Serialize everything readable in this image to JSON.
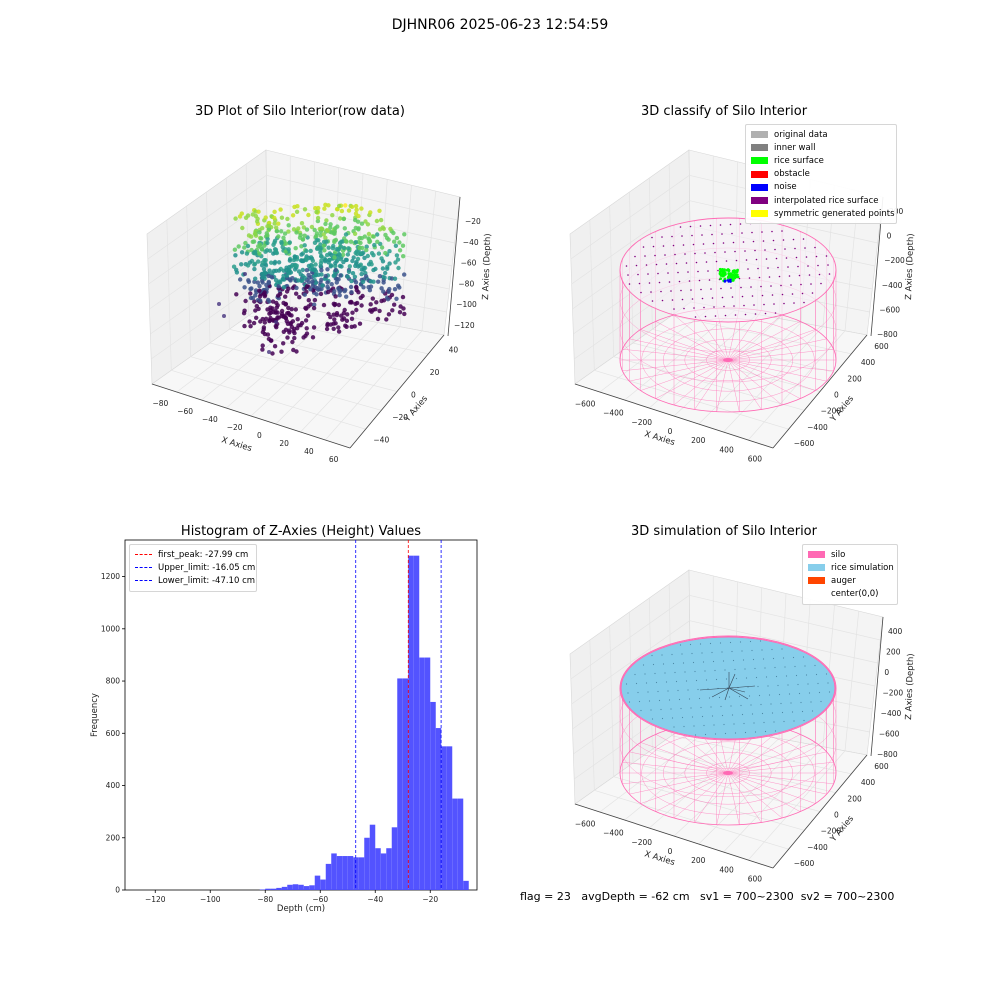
{
  "suptitle": "DJHNR06 2025-06-23 12:54:59",
  "footer": {
    "flag": "flag = 23",
    "avgdepth": "avgDepth = -62 cm",
    "sv1": "sv1 = 700~2300",
    "sv2": "sv2 = 700~2300"
  },
  "colors": {
    "silo_pink": "#ff69b4",
    "rice_blue": "#87ceeb",
    "auger": "#ff4500",
    "hist_bar": "#4a4aff"
  },
  "chart_data": [
    {
      "type": "scatter",
      "title": "3D Plot of Silo Interior(row data)",
      "xlabel": "X Axies",
      "ylabel": "Y Axies",
      "zlabel": "Z Axies (Depth)",
      "xticks": [
        "−80",
        "−60",
        "−40",
        "−20",
        "0",
        "20",
        "40",
        "60"
      ],
      "yticks": [
        "−40",
        "−20",
        "0",
        "20",
        "40"
      ],
      "zticks": [
        "−20",
        "−40",
        "−60",
        "−80",
        "−100",
        "−120"
      ],
      "xlim": [
        -90,
        70
      ],
      "ylim": [
        -50,
        45
      ],
      "zlim": [
        -130,
        -10
      ],
      "colormap": "viridis"
    },
    {
      "type": "scatter",
      "title": "3D classify of Silo Interior",
      "xlabel": "X Axies",
      "ylabel": "Y Axies",
      "zlabel": "Z Axies (Depth)",
      "xticks": [
        "−600",
        "−400",
        "−200",
        "0",
        "200",
        "400",
        "600"
      ],
      "yticks": [
        "−600",
        "−400",
        "−200",
        "0",
        "200",
        "400",
        "600"
      ],
      "zticks": [
        "200",
        "0",
        "−200",
        "−400",
        "−600",
        "−800"
      ],
      "legend": [
        {
          "label": "original data",
          "color": "#b0b0b0"
        },
        {
          "label": "inner wall",
          "color": "#808080"
        },
        {
          "label": "rice surface",
          "color": "#00ff00"
        },
        {
          "label": "obstacle",
          "color": "#ff0000"
        },
        {
          "label": "noise",
          "color": "#0000ff"
        },
        {
          "label": "interpolated rice surface",
          "color": "#800080"
        },
        {
          "label": "symmetric generated points",
          "color": "#ffff00"
        }
      ],
      "legend_loc": "upper right"
    },
    {
      "type": "bar",
      "title": "Histogram of Z-Axies (Height) Values",
      "xlabel": "Depth (cm)",
      "ylabel": "Frequency",
      "xlim": [
        -131,
        -3
      ],
      "ylim": [
        0,
        1340
      ],
      "xticks": [
        -120,
        -100,
        -80,
        -60,
        -40,
        -20
      ],
      "xtick_labels": [
        "−120",
        "−100",
        "−80",
        "−60",
        "−40",
        "−20"
      ],
      "yticks": [
        0,
        200,
        400,
        600,
        800,
        1000,
        1200
      ],
      "yticks_labels": [
        "0",
        "200",
        "400",
        "600",
        "800",
        "1000",
        "1200"
      ],
      "bin_width": 2,
      "bins_left": [
        -82,
        -80,
        -78,
        -76,
        -74,
        -72,
        -70,
        -68,
        -66,
        -64,
        -62,
        -60,
        -58,
        -56,
        -54,
        -52,
        -50,
        -48,
        -46,
        -44,
        -42,
        -40,
        -38,
        -36,
        -34,
        -32,
        -30,
        -28,
        -26,
        -24,
        -22,
        -20,
        -18,
        -16,
        -14,
        -12,
        -10,
        -8
      ],
      "values": [
        2,
        5,
        5,
        8,
        12,
        20,
        22,
        20,
        15,
        18,
        55,
        40,
        100,
        140,
        130,
        130,
        130,
        125,
        125,
        200,
        250,
        160,
        140,
        160,
        240,
        810,
        810,
        1280,
        1280,
        890,
        890,
        720,
        620,
        550,
        550,
        350,
        350,
        35
      ],
      "vlines": [
        {
          "x": -27.99,
          "color": "#ff0000",
          "label": "first_peak: -27.99 cm"
        },
        {
          "x": -16.05,
          "color": "#0000ff",
          "label": "Upper_limit: -16.05 cm"
        },
        {
          "x": -47.1,
          "color": "#0000ff",
          "label": "Lower_limit: -47.10 cm"
        }
      ],
      "legend_loc": "upper left"
    },
    {
      "type": "scatter",
      "title": "3D simulation of Silo Interior",
      "xlabel": "X Axies",
      "ylabel": "Y Axies",
      "zlabel": "Z Axies (Depth)",
      "xticks": [
        "−600",
        "−400",
        "−200",
        "0",
        "200",
        "400",
        "600"
      ],
      "yticks": [
        "−600",
        "−400",
        "−200",
        "0",
        "200",
        "400",
        "600"
      ],
      "zticks": [
        "400",
        "200",
        "0",
        "−200",
        "−400",
        "−600",
        "−800"
      ],
      "legend": [
        {
          "label": "silo",
          "color": "#ff69b4"
        },
        {
          "label": "rice simulation",
          "color": "#87ceeb"
        },
        {
          "label": "auger",
          "color": "#ff4500"
        },
        {
          "label": "center(0,0)",
          "color": "#ffffff"
        }
      ],
      "legend_loc": "upper right"
    }
  ]
}
